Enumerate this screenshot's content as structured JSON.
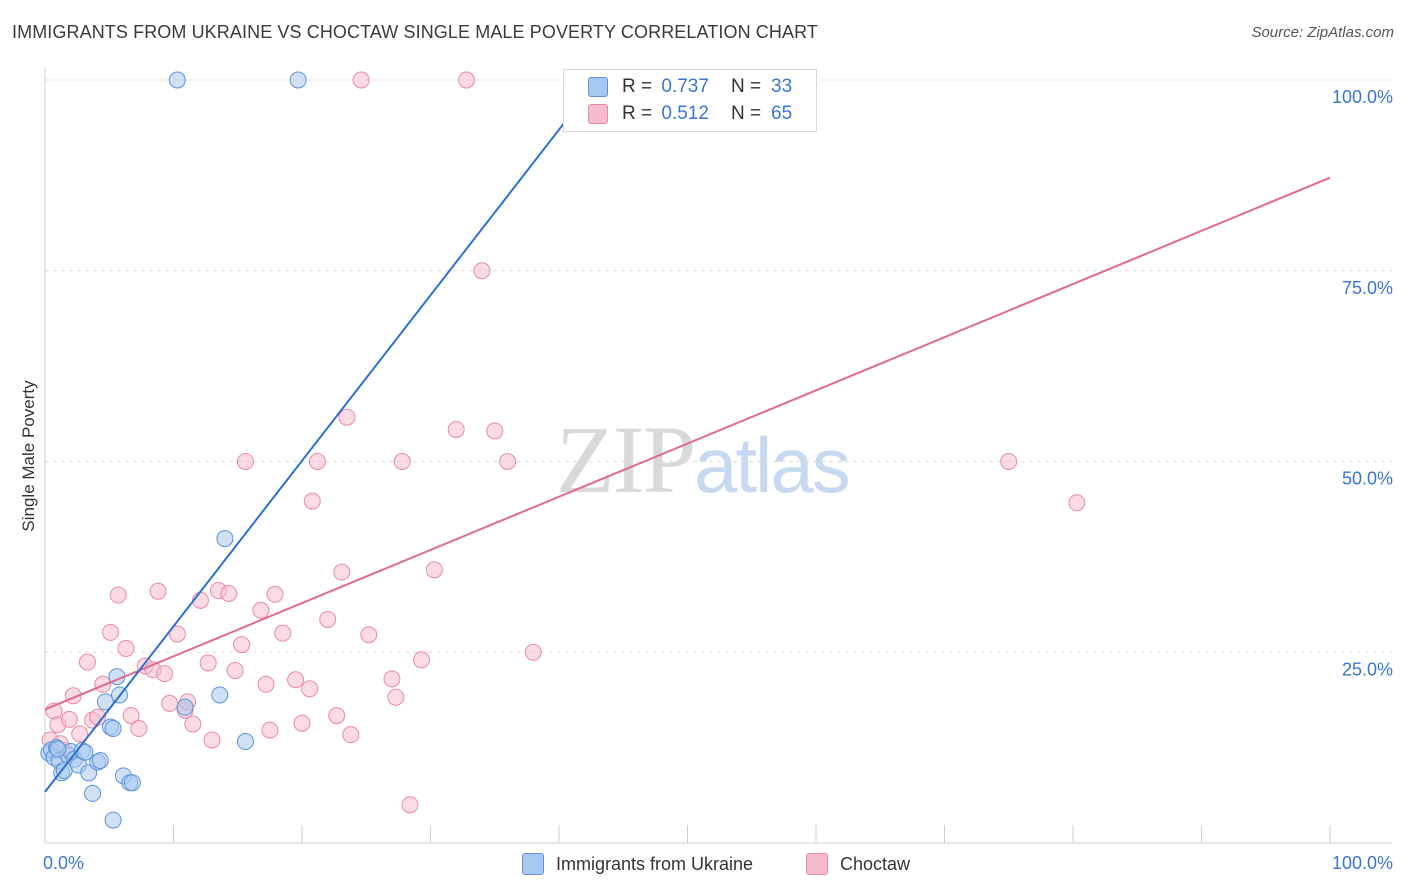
{
  "header": {
    "title": "IMMIGRANTS FROM UKRAINE VS CHOCTAW SINGLE MALE POVERTY CORRELATION CHART",
    "source": "Source: ZipAtlas.com"
  },
  "watermark": {
    "zip": "ZIP",
    "atlas": "atlas"
  },
  "legend": {
    "rows": [
      {
        "r_label": "R =",
        "r_value": "0.737",
        "n_label": "N =",
        "n_value": "33"
      },
      {
        "r_label": "R =",
        "r_value": "0.512",
        "n_label": "N =",
        "n_value": "65"
      }
    ],
    "bottom": [
      "Immigrants from Ukraine",
      "Choctaw"
    ]
  },
  "colors": {
    "blue_fill": "#a9c8ef",
    "blue_stroke": "#5b93d9",
    "blue_line": "#2f6fd0",
    "pink_fill": "#f6bccd",
    "pink_stroke": "#e88aa6",
    "pink_line": "#e06a94",
    "tick_label": "#3a76d1",
    "grid": "#dcdcdc"
  },
  "chart_data": {
    "type": "scatter",
    "title": "IMMIGRANTS FROM UKRAINE VS CHOCTAW SINGLE MALE POVERTY CORRELATION CHART",
    "xlabel": "",
    "ylabel": "Single Male Poverty",
    "xlim": [
      0,
      100
    ],
    "ylim": [
      0,
      100
    ],
    "x_tick_labels": [
      "0.0%",
      "100.0%"
    ],
    "y_tick_labels": [
      "25.0%",
      "50.0%",
      "75.0%",
      "100.0%"
    ],
    "y_ticks": [
      25,
      50,
      75,
      100
    ],
    "grid": true,
    "legend_position": "top-center",
    "series": [
      {
        "name": "Immigrants from Ukraine",
        "color": "#a9c8ef",
        "R": 0.737,
        "N": 33,
        "trend": {
          "x0": 0,
          "y0": 6.7,
          "x1": 43,
          "y1": 100
        },
        "points": [
          [
            0.3,
            11.8
          ],
          [
            0.5,
            12.2
          ],
          [
            0.7,
            11.2
          ],
          [
            0.9,
            12.5
          ],
          [
            1.1,
            10.8
          ],
          [
            1.3,
            9.2
          ],
          [
            1.5,
            9.5
          ],
          [
            1.8,
            11.5
          ],
          [
            2.0,
            12.0
          ],
          [
            2.3,
            11.0
          ],
          [
            2.6,
            10.2
          ],
          [
            2.9,
            12.1
          ],
          [
            3.1,
            11.9
          ],
          [
            3.4,
            9.2
          ],
          [
            3.7,
            6.5
          ],
          [
            4.1,
            10.6
          ],
          [
            4.3,
            10.8
          ],
          [
            4.7,
            18.5
          ],
          [
            5.1,
            15.2
          ],
          [
            5.3,
            15.0
          ],
          [
            5.6,
            21.8
          ],
          [
            5.8,
            19.4
          ],
          [
            6.1,
            8.8
          ],
          [
            6.6,
            7.9
          ],
          [
            6.8,
            7.9
          ],
          [
            5.3,
            3.0
          ],
          [
            10.3,
            100.0
          ],
          [
            19.7,
            100.0
          ],
          [
            14.0,
            39.9
          ],
          [
            13.6,
            19.4
          ],
          [
            10.9,
            17.8
          ],
          [
            15.6,
            13.3
          ],
          [
            1.0,
            12.3
          ]
        ]
      },
      {
        "name": "Choctaw",
        "color": "#f6bccd",
        "R": 0.512,
        "N": 65,
        "trend": {
          "x0": 0,
          "y0": 17.5,
          "x1": 100,
          "y1": 87.2
        },
        "points": [
          [
            0.4,
            13.5
          ],
          [
            0.7,
            17.3
          ],
          [
            1.0,
            15.5
          ],
          [
            1.5,
            12.1
          ],
          [
            1.9,
            16.2
          ],
          [
            2.2,
            19.3
          ],
          [
            2.7,
            14.3
          ],
          [
            3.3,
            23.7
          ],
          [
            3.7,
            16.1
          ],
          [
            4.1,
            16.5
          ],
          [
            4.5,
            20.8
          ],
          [
            5.1,
            27.6
          ],
          [
            5.7,
            32.5
          ],
          [
            6.3,
            25.5
          ],
          [
            6.7,
            16.7
          ],
          [
            7.3,
            15.0
          ],
          [
            7.8,
            23.2
          ],
          [
            8.4,
            22.7
          ],
          [
            8.8,
            33.0
          ],
          [
            9.3,
            22.2
          ],
          [
            9.7,
            18.3
          ],
          [
            10.3,
            27.4
          ],
          [
            10.9,
            17.4
          ],
          [
            11.1,
            18.5
          ],
          [
            11.5,
            15.6
          ],
          [
            12.1,
            31.8
          ],
          [
            12.7,
            23.6
          ],
          [
            13.0,
            13.5
          ],
          [
            13.5,
            33.1
          ],
          [
            14.3,
            32.7
          ],
          [
            14.8,
            22.6
          ],
          [
            15.3,
            26.0
          ],
          [
            15.6,
            50.0
          ],
          [
            16.8,
            30.5
          ],
          [
            17.2,
            20.8
          ],
          [
            17.5,
            14.8
          ],
          [
            17.9,
            32.6
          ],
          [
            18.5,
            27.5
          ],
          [
            19.5,
            21.4
          ],
          [
            20.0,
            15.7
          ],
          [
            20.6,
            20.2
          ],
          [
            20.8,
            44.8
          ],
          [
            21.2,
            50.0
          ],
          [
            22.0,
            29.3
          ],
          [
            22.7,
            16.7
          ],
          [
            23.1,
            35.5
          ],
          [
            23.5,
            55.8
          ],
          [
            23.8,
            14.2
          ],
          [
            25.2,
            27.3
          ],
          [
            27.0,
            21.5
          ],
          [
            27.3,
            19.1
          ],
          [
            27.8,
            50.0
          ],
          [
            28.4,
            5.0
          ],
          [
            29.3,
            24.0
          ],
          [
            30.3,
            35.8
          ],
          [
            32.0,
            54.2
          ],
          [
            34.0,
            75.0
          ],
          [
            35.0,
            54.0
          ],
          [
            36.0,
            50.0
          ],
          [
            38.0,
            25.0
          ],
          [
            24.6,
            100.0
          ],
          [
            32.8,
            100.0
          ],
          [
            75.0,
            50.0
          ],
          [
            80.3,
            44.6
          ],
          [
            1.2,
            13.0
          ]
        ]
      }
    ]
  }
}
